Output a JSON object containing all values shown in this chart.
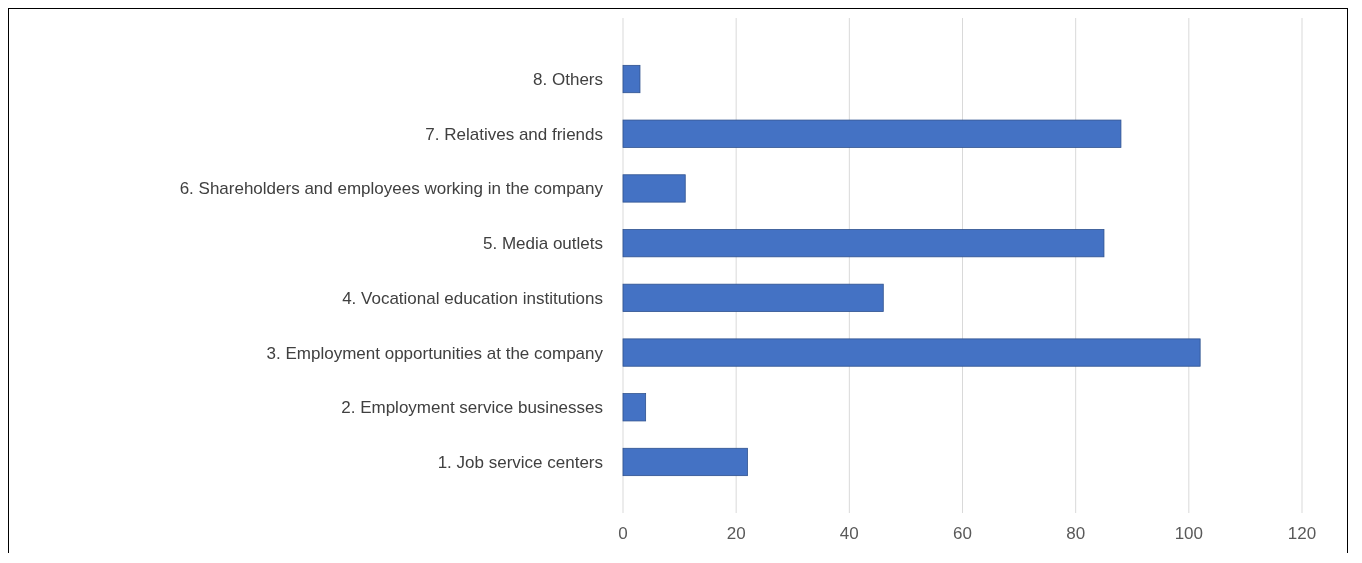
{
  "chart_data": {
    "type": "bar",
    "orientation": "horizontal",
    "categories": [
      "8. Others",
      "7. Relatives and friends",
      "6. Shareholders and employees working in the company",
      "5. Media outlets",
      "4. Vocational education institutions",
      "3. Employment opportunities at the company",
      "2. Employment service businesses",
      "1. Job service centers"
    ],
    "values": [
      3,
      88,
      11,
      85,
      46,
      102,
      4,
      22
    ],
    "color": "#4472c4",
    "xlim": [
      0,
      120
    ],
    "xticks": [
      0,
      20,
      40,
      60,
      80,
      100,
      120
    ],
    "grid": "x"
  }
}
